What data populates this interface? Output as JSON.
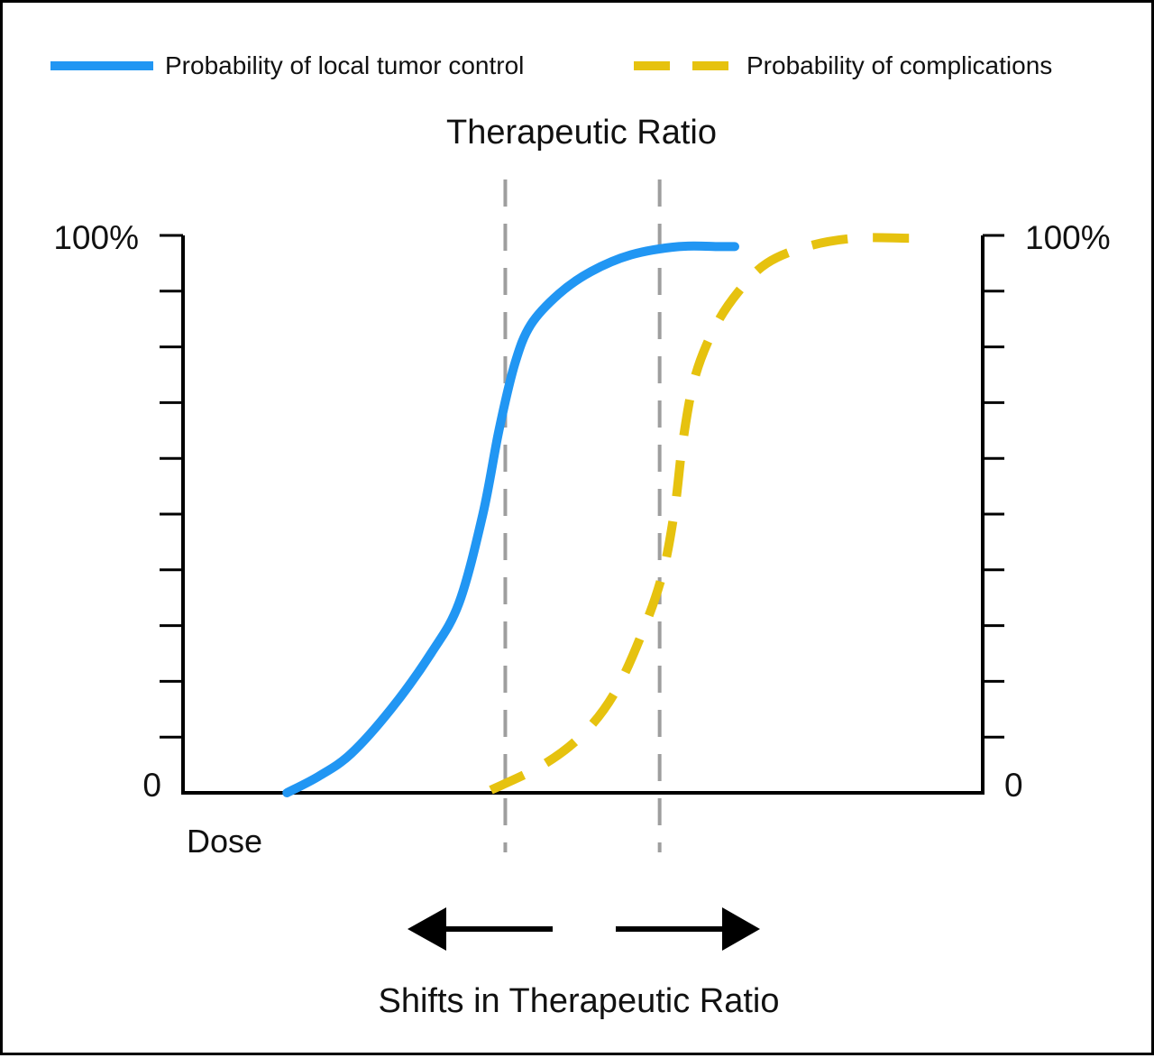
{
  "chart_data": {
    "type": "line",
    "title": "Therapeutic Ratio",
    "xlabel": "Dose",
    "ylabel": "",
    "y_left_ticks": [
      "0",
      "100%"
    ],
    "y_right_ticks": [
      "0",
      "100%"
    ],
    "ylim": [
      0,
      100
    ],
    "xlim": [
      0,
      100
    ],
    "minor_tick_count": 10,
    "grid": false,
    "legend_position": "top",
    "series": [
      {
        "name": "Probability of local tumor control",
        "style": "solid",
        "color": "#2196f3",
        "x": [
          13,
          17,
          21,
          26,
          31,
          34.5,
          37.5,
          39.5,
          41.5,
          43.5,
          47,
          51,
          56,
          62,
          67,
          68,
          69
        ],
        "y": [
          0,
          3,
          7,
          15,
          25,
          34,
          50,
          65,
          77,
          84,
          89.5,
          93.5,
          96.5,
          98,
          98,
          98,
          98
        ]
      },
      {
        "name": "Probability of complications",
        "style": "dashed",
        "color": "#e6c20f",
        "x": [
          38.5,
          45,
          50,
          54,
          57.5,
          60,
          61.5,
          62.5,
          64,
          66.5,
          69.5,
          73,
          78,
          84,
          90.5,
          93
        ],
        "y": [
          0.5,
          5,
          10.5,
          18,
          29,
          39.5,
          51,
          63,
          74.5,
          83.5,
          90,
          95,
          98,
          99.5,
          99.5,
          99.5
        ]
      }
    ],
    "reference_lines_x": [
      40.3,
      59.6
    ],
    "annotation": "Shifts in Therapeutic Ratio",
    "annotation_arrows": [
      "left",
      "right"
    ]
  }
}
